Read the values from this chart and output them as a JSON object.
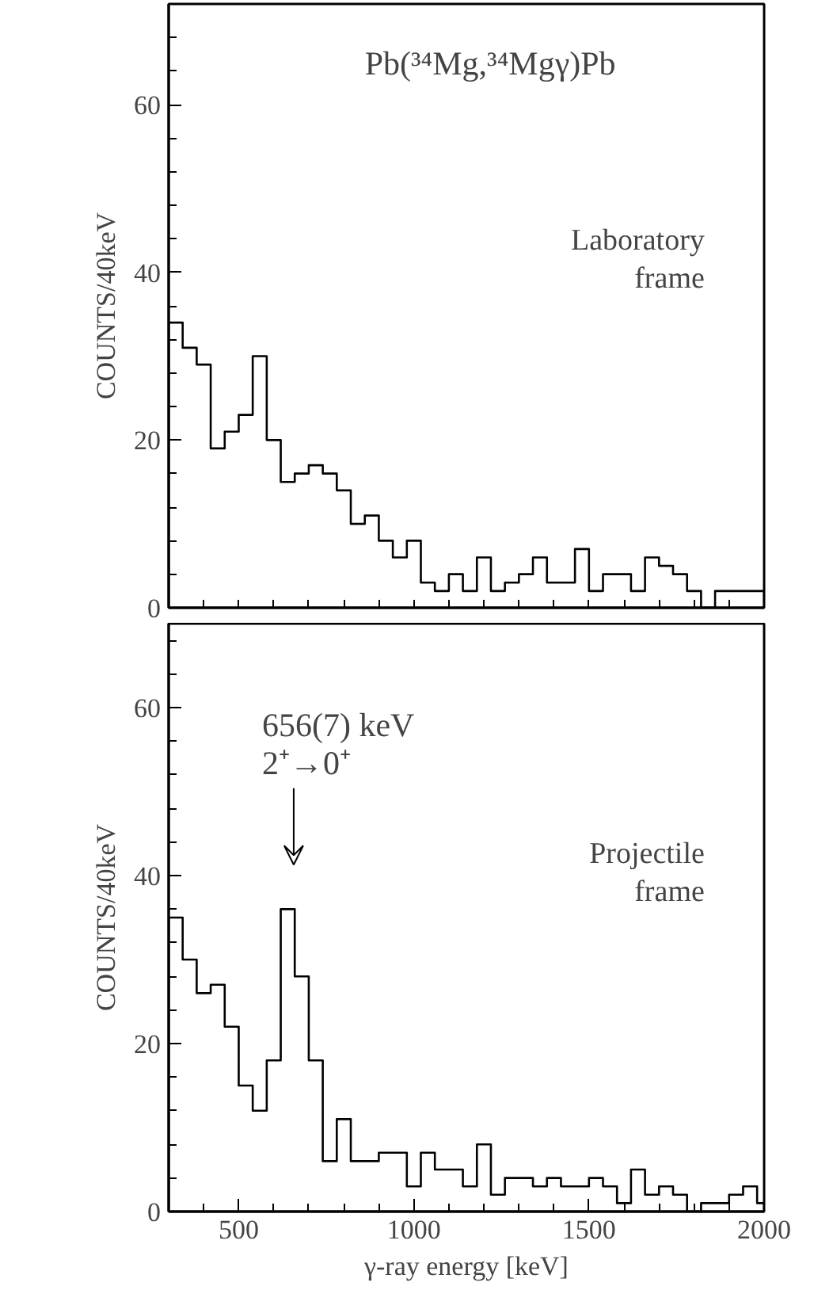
{
  "chart_data": [
    {
      "type": "histogram",
      "ylabel": "COUNTS/40keV",
      "color": "#000000",
      "tick_labels": "y",
      "bins": [
        300,
        340,
        380,
        420,
        460,
        500,
        540,
        580,
        620,
        660,
        700,
        740,
        780,
        820,
        860,
        900,
        940,
        980,
        1020,
        1060,
        1100,
        1140,
        1180,
        1220,
        1260,
        1300,
        1340,
        1380,
        1420,
        1460,
        1500,
        1540,
        1580,
        1620,
        1660,
        1700,
        1740,
        1780,
        1820,
        1860,
        1900,
        1940,
        1980,
        2000
      ],
      "values": [
        34,
        31,
        29,
        19,
        21,
        23,
        30,
        20,
        15,
        16,
        17,
        16,
        14,
        10,
        11,
        8,
        6,
        8,
        3,
        2,
        4,
        2,
        6,
        2,
        3,
        4,
        6,
        3,
        3,
        7,
        2,
        4,
        4,
        2,
        6,
        5,
        4,
        2,
        0,
        2,
        2,
        2,
        2
      ],
      "xlim": [
        300,
        2000
      ],
      "ylim": [
        0,
        72
      ],
      "xticks": [
        {
          "value": 400,
          "label": null
        },
        {
          "value": 500,
          "label": null
        },
        {
          "value": 600,
          "label": null
        },
        {
          "value": 700,
          "label": null
        },
        {
          "value": 800,
          "label": null
        },
        {
          "value": 900,
          "label": null
        },
        {
          "value": 1000,
          "label": null
        },
        {
          "value": 1100,
          "label": null
        },
        {
          "value": 1200,
          "label": null
        },
        {
          "value": 1300,
          "label": null
        },
        {
          "value": 1400,
          "label": null
        },
        {
          "value": 1500,
          "label": null
        },
        {
          "value": 1600,
          "label": null
        },
        {
          "value": 1700,
          "label": null
        },
        {
          "value": 1800,
          "label": null
        },
        {
          "value": 1900,
          "label": null
        }
      ],
      "yticks": [
        0,
        {
          "value": 4,
          "label": null
        },
        {
          "value": 8,
          "label": null
        },
        {
          "value": 12,
          "label": null
        },
        {
          "value": 16,
          "label": null
        },
        20,
        {
          "value": 24,
          "label": null
        },
        {
          "value": 28,
          "label": null
        },
        {
          "value": 32,
          "label": null
        },
        {
          "value": 36,
          "label": null
        },
        40,
        {
          "value": 44,
          "label": null
        },
        {
          "value": 48,
          "label": null
        },
        {
          "value": 52,
          "label": null
        },
        {
          "value": 56,
          "label": null
        },
        60,
        {
          "value": 64,
          "label": null
        },
        {
          "value": 68,
          "label": null
        }
      ],
      "annotations": [
        "Pb(³⁴Mg,³⁴Mgγ)Pb",
        "Laboratory\nframe"
      ]
    },
    {
      "type": "histogram",
      "ylabel": "COUNTS/40keV",
      "xlabel": "γ-ray energy [keV]",
      "color": "#000000",
      "bins": [
        300,
        340,
        380,
        420,
        460,
        500,
        540,
        580,
        620,
        660,
        700,
        740,
        780,
        820,
        860,
        900,
        940,
        980,
        1020,
        1060,
        1100,
        1140,
        1180,
        1220,
        1260,
        1300,
        1340,
        1380,
        1420,
        1460,
        1500,
        1540,
        1580,
        1620,
        1660,
        1700,
        1740,
        1780,
        1820,
        1860,
        1900,
        1940,
        1980,
        2000
      ],
      "values": [
        35,
        30,
        26,
        27,
        22,
        15,
        12,
        18,
        36,
        28,
        18,
        6,
        11,
        6,
        6,
        7,
        7,
        3,
        7,
        5,
        5,
        3,
        8,
        2,
        4,
        4,
        3,
        4,
        3,
        3,
        4,
        3,
        1,
        5,
        2,
        3,
        2,
        0,
        1,
        1,
        2,
        3,
        1
      ],
      "xlim": [
        300,
        2000
      ],
      "ylim": [
        0,
        70
      ],
      "xticks": [
        {
          "value": 400,
          "label": null
        },
        500,
        {
          "value": 600,
          "label": null
        },
        {
          "value": 700,
          "label": null
        },
        {
          "value": 800,
          "label": null
        },
        {
          "value": 900,
          "label": null
        },
        1000,
        {
          "value": 1100,
          "label": null
        },
        {
          "value": 1200,
          "label": null
        },
        {
          "value": 1300,
          "label": null
        },
        {
          "value": 1400,
          "label": null
        },
        1500,
        {
          "value": 1600,
          "label": null
        },
        {
          "value": 1700,
          "label": null
        },
        {
          "value": 1800,
          "label": null
        },
        {
          "value": 1900,
          "label": null
        },
        2000
      ],
      "yticks": [
        0,
        {
          "value": 4,
          "label": null
        },
        {
          "value": 8,
          "label": null
        },
        {
          "value": 12,
          "label": null
        },
        {
          "value": 16,
          "label": null
        },
        20,
        {
          "value": 24,
          "label": null
        },
        {
          "value": 28,
          "label": null
        },
        {
          "value": 32,
          "label": null
        },
        {
          "value": 36,
          "label": null
        },
        40,
        {
          "value": 44,
          "label": null
        },
        {
          "value": 48,
          "label": null
        },
        {
          "value": 52,
          "label": null
        },
        {
          "value": 56,
          "label": null
        },
        60,
        {
          "value": 64,
          "label": null
        },
        {
          "value": 68,
          "label": null
        }
      ],
      "annotations": [
        "656(7) keV\n2⁺→0⁺",
        "Projectile\nframe"
      ]
    }
  ]
}
